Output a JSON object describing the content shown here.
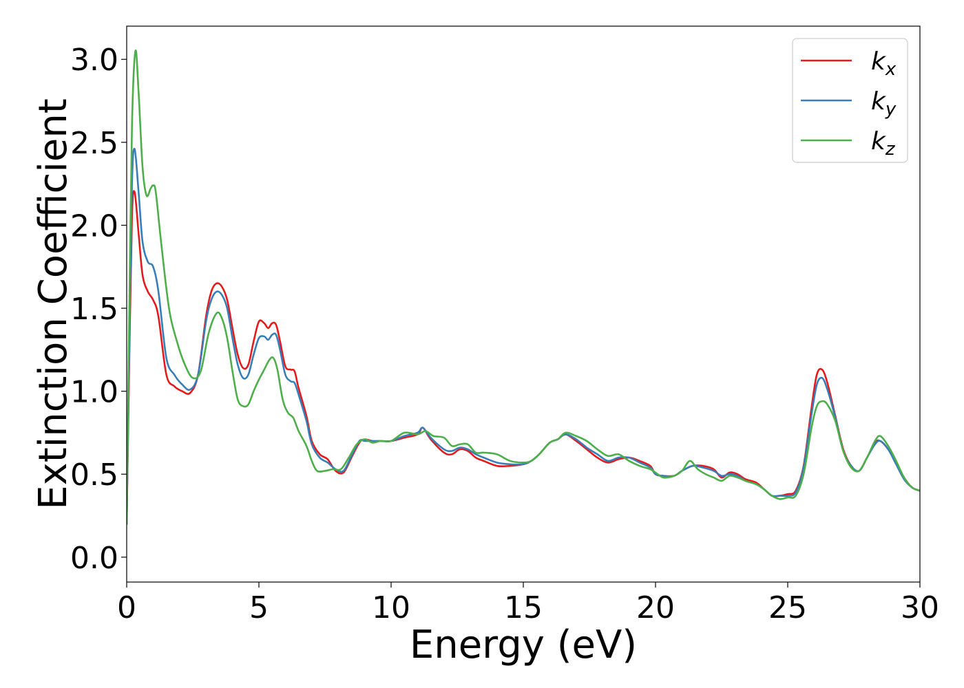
{
  "chart_data": {
    "type": "line",
    "xlabel": "Energy (eV)",
    "ylabel": "Extinction Coefficient",
    "xlim": [
      0,
      30
    ],
    "ylim": [
      -0.15,
      3.2
    ],
    "xticks": [
      0,
      5,
      10,
      15,
      20,
      25,
      30
    ],
    "xtick_labels": [
      "0",
      "5",
      "10",
      "15",
      "20",
      "25",
      "30"
    ],
    "yticks": [
      0.0,
      0.5,
      1.0,
      1.5,
      2.0,
      2.5,
      3.0
    ],
    "ytick_labels": [
      "0.0",
      "0.5",
      "1.0",
      "1.5",
      "2.0",
      "2.5",
      "3.0"
    ],
    "grid": false,
    "legend_position": "top-right",
    "series": [
      {
        "name": "k",
        "subscript": "x",
        "color": "#e41a1c",
        "x": [
          0,
          0.1,
          0.2,
          0.3,
          0.45,
          0.6,
          0.8,
          1.0,
          1.2,
          1.5,
          1.8,
          2.1,
          2.4,
          2.7,
          3.0,
          3.2,
          3.4,
          3.6,
          3.8,
          4.0,
          4.2,
          4.4,
          4.6,
          4.8,
          5.0,
          5.2,
          5.35,
          5.5,
          5.65,
          5.8,
          6.0,
          6.2,
          6.35,
          6.5,
          6.8,
          7.0,
          7.3,
          7.6,
          7.9,
          8.2,
          8.5,
          8.8,
          9.0,
          9.3,
          9.6,
          10.0,
          10.5,
          11.0,
          11.2,
          11.5,
          12.0,
          12.3,
          12.6,
          12.9,
          13.2,
          13.5,
          14.0,
          14.5,
          15.0,
          15.3,
          15.6,
          16.0,
          16.3,
          16.6,
          17.0,
          17.4,
          17.8,
          18.2,
          18.6,
          19.0,
          19.4,
          19.8,
          20.0,
          20.3,
          20.7,
          21.0,
          21.4,
          21.8,
          22.2,
          22.5,
          22.8,
          23.1,
          23.4,
          23.8,
          24.1,
          24.4,
          24.7,
          25.0,
          25.3,
          25.6,
          25.9,
          26.1,
          26.3,
          26.5,
          26.8,
          27.1,
          27.4,
          27.7,
          28.0,
          28.3,
          28.5,
          28.8,
          29.1,
          29.4,
          29.7,
          30.0
        ],
        "y": [
          0.2,
          1.2,
          2.05,
          2.2,
          1.95,
          1.7,
          1.6,
          1.55,
          1.45,
          1.1,
          1.03,
          1.0,
          0.99,
          1.1,
          1.45,
          1.6,
          1.65,
          1.63,
          1.55,
          1.38,
          1.22,
          1.14,
          1.16,
          1.3,
          1.42,
          1.41,
          1.38,
          1.41,
          1.4,
          1.3,
          1.15,
          1.13,
          1.12,
          1.02,
          0.85,
          0.7,
          0.62,
          0.59,
          0.52,
          0.51,
          0.6,
          0.69,
          0.71,
          0.7,
          0.7,
          0.7,
          0.72,
          0.74,
          0.78,
          0.71,
          0.63,
          0.62,
          0.65,
          0.64,
          0.6,
          0.58,
          0.55,
          0.55,
          0.56,
          0.58,
          0.62,
          0.69,
          0.71,
          0.74,
          0.7,
          0.65,
          0.6,
          0.57,
          0.59,
          0.6,
          0.58,
          0.55,
          0.5,
          0.49,
          0.49,
          0.52,
          0.55,
          0.55,
          0.53,
          0.48,
          0.51,
          0.5,
          0.47,
          0.45,
          0.41,
          0.37,
          0.37,
          0.38,
          0.4,
          0.55,
          0.9,
          1.1,
          1.13,
          1.05,
          0.85,
          0.65,
          0.55,
          0.52,
          0.6,
          0.69,
          0.7,
          0.65,
          0.57,
          0.48,
          0.42,
          0.4
        ]
      },
      {
        "name": "k",
        "subscript": "y",
        "color": "#377eb8",
        "x": [
          0,
          0.1,
          0.2,
          0.3,
          0.45,
          0.6,
          0.8,
          1.0,
          1.2,
          1.5,
          1.8,
          2.1,
          2.4,
          2.7,
          3.0,
          3.2,
          3.4,
          3.6,
          3.8,
          4.0,
          4.2,
          4.4,
          4.6,
          4.8,
          5.0,
          5.2,
          5.35,
          5.5,
          5.65,
          5.8,
          6.0,
          6.2,
          6.35,
          6.5,
          6.8,
          7.0,
          7.3,
          7.6,
          7.9,
          8.2,
          8.5,
          8.8,
          9.0,
          9.3,
          9.6,
          10.0,
          10.5,
          11.0,
          11.2,
          11.5,
          12.0,
          12.3,
          12.6,
          12.9,
          13.2,
          13.5,
          14.0,
          14.5,
          15.0,
          15.3,
          15.6,
          16.0,
          16.3,
          16.6,
          17.0,
          17.4,
          17.8,
          18.2,
          18.6,
          19.0,
          19.4,
          19.8,
          20.0,
          20.3,
          20.7,
          21.0,
          21.4,
          21.8,
          22.2,
          22.5,
          22.8,
          23.1,
          23.4,
          23.8,
          24.1,
          24.4,
          24.7,
          25.0,
          25.3,
          25.6,
          25.9,
          26.1,
          26.3,
          26.5,
          26.8,
          27.1,
          27.4,
          27.7,
          28.0,
          28.3,
          28.5,
          28.8,
          29.1,
          29.4,
          29.7,
          30.0
        ],
        "y": [
          0.2,
          1.3,
          2.25,
          2.46,
          2.2,
          1.9,
          1.78,
          1.75,
          1.6,
          1.2,
          1.1,
          1.04,
          1.01,
          1.1,
          1.42,
          1.55,
          1.6,
          1.58,
          1.5,
          1.32,
          1.16,
          1.08,
          1.1,
          1.22,
          1.32,
          1.33,
          1.31,
          1.34,
          1.34,
          1.25,
          1.1,
          1.06,
          1.05,
          0.98,
          0.82,
          0.68,
          0.6,
          0.57,
          0.53,
          0.52,
          0.61,
          0.7,
          0.7,
          0.7,
          0.7,
          0.7,
          0.73,
          0.75,
          0.78,
          0.72,
          0.65,
          0.64,
          0.66,
          0.65,
          0.62,
          0.6,
          0.57,
          0.56,
          0.56,
          0.58,
          0.62,
          0.69,
          0.71,
          0.74,
          0.71,
          0.66,
          0.62,
          0.58,
          0.6,
          0.6,
          0.57,
          0.54,
          0.5,
          0.49,
          0.49,
          0.52,
          0.55,
          0.54,
          0.52,
          0.49,
          0.5,
          0.49,
          0.46,
          0.44,
          0.41,
          0.37,
          0.37,
          0.37,
          0.39,
          0.54,
          0.86,
          1.04,
          1.08,
          1.01,
          0.84,
          0.64,
          0.55,
          0.52,
          0.6,
          0.68,
          0.7,
          0.65,
          0.56,
          0.47,
          0.42,
          0.4
        ]
      },
      {
        "name": "k",
        "subscript": "z",
        "color": "#4daf4a",
        "x": [
          0,
          0.1,
          0.2,
          0.33,
          0.45,
          0.6,
          0.75,
          0.9,
          1.0,
          1.1,
          1.3,
          1.6,
          1.9,
          2.2,
          2.5,
          2.8,
          3.1,
          3.4,
          3.6,
          3.8,
          4.0,
          4.2,
          4.4,
          4.6,
          4.8,
          5.0,
          5.2,
          5.4,
          5.55,
          5.7,
          5.9,
          6.1,
          6.3,
          6.5,
          6.8,
          7.0,
          7.2,
          7.5,
          7.8,
          8.1,
          8.4,
          8.7,
          9.0,
          9.3,
          9.6,
          10.0,
          10.5,
          11.0,
          11.3,
          11.6,
          12.0,
          12.3,
          12.6,
          12.9,
          13.2,
          13.5,
          14.0,
          14.5,
          15.0,
          15.3,
          15.6,
          16.0,
          16.3,
          16.6,
          17.0,
          17.4,
          17.8,
          18.2,
          18.6,
          19.0,
          19.4,
          19.8,
          20.0,
          20.3,
          20.7,
          21.0,
          21.3,
          21.6,
          21.9,
          22.2,
          22.5,
          22.8,
          23.1,
          23.4,
          23.8,
          24.1,
          24.4,
          24.7,
          25.0,
          25.3,
          25.6,
          25.9,
          26.1,
          26.3,
          26.5,
          26.8,
          27.1,
          27.4,
          27.7,
          28.0,
          28.3,
          28.5,
          28.8,
          29.1,
          29.4,
          29.7,
          30.0
        ],
        "y": [
          0.2,
          1.5,
          2.6,
          3.05,
          2.8,
          2.35,
          2.18,
          2.22,
          2.24,
          2.2,
          1.9,
          1.5,
          1.3,
          1.16,
          1.08,
          1.12,
          1.35,
          1.47,
          1.44,
          1.32,
          1.12,
          0.95,
          0.91,
          0.92,
          1.0,
          1.07,
          1.13,
          1.19,
          1.2,
          1.13,
          0.95,
          0.87,
          0.84,
          0.76,
          0.67,
          0.58,
          0.52,
          0.52,
          0.53,
          0.53,
          0.6,
          0.68,
          0.71,
          0.69,
          0.7,
          0.7,
          0.75,
          0.74,
          0.76,
          0.73,
          0.72,
          0.67,
          0.68,
          0.68,
          0.63,
          0.63,
          0.62,
          0.58,
          0.57,
          0.58,
          0.62,
          0.69,
          0.71,
          0.75,
          0.73,
          0.7,
          0.65,
          0.61,
          0.62,
          0.58,
          0.55,
          0.53,
          0.51,
          0.48,
          0.49,
          0.52,
          0.58,
          0.53,
          0.5,
          0.48,
          0.46,
          0.49,
          0.48,
          0.46,
          0.44,
          0.41,
          0.37,
          0.35,
          0.36,
          0.37,
          0.5,
          0.78,
          0.91,
          0.94,
          0.92,
          0.82,
          0.64,
          0.54,
          0.52,
          0.6,
          0.7,
          0.73,
          0.67,
          0.58,
          0.48,
          0.42,
          0.4
        ]
      }
    ]
  }
}
